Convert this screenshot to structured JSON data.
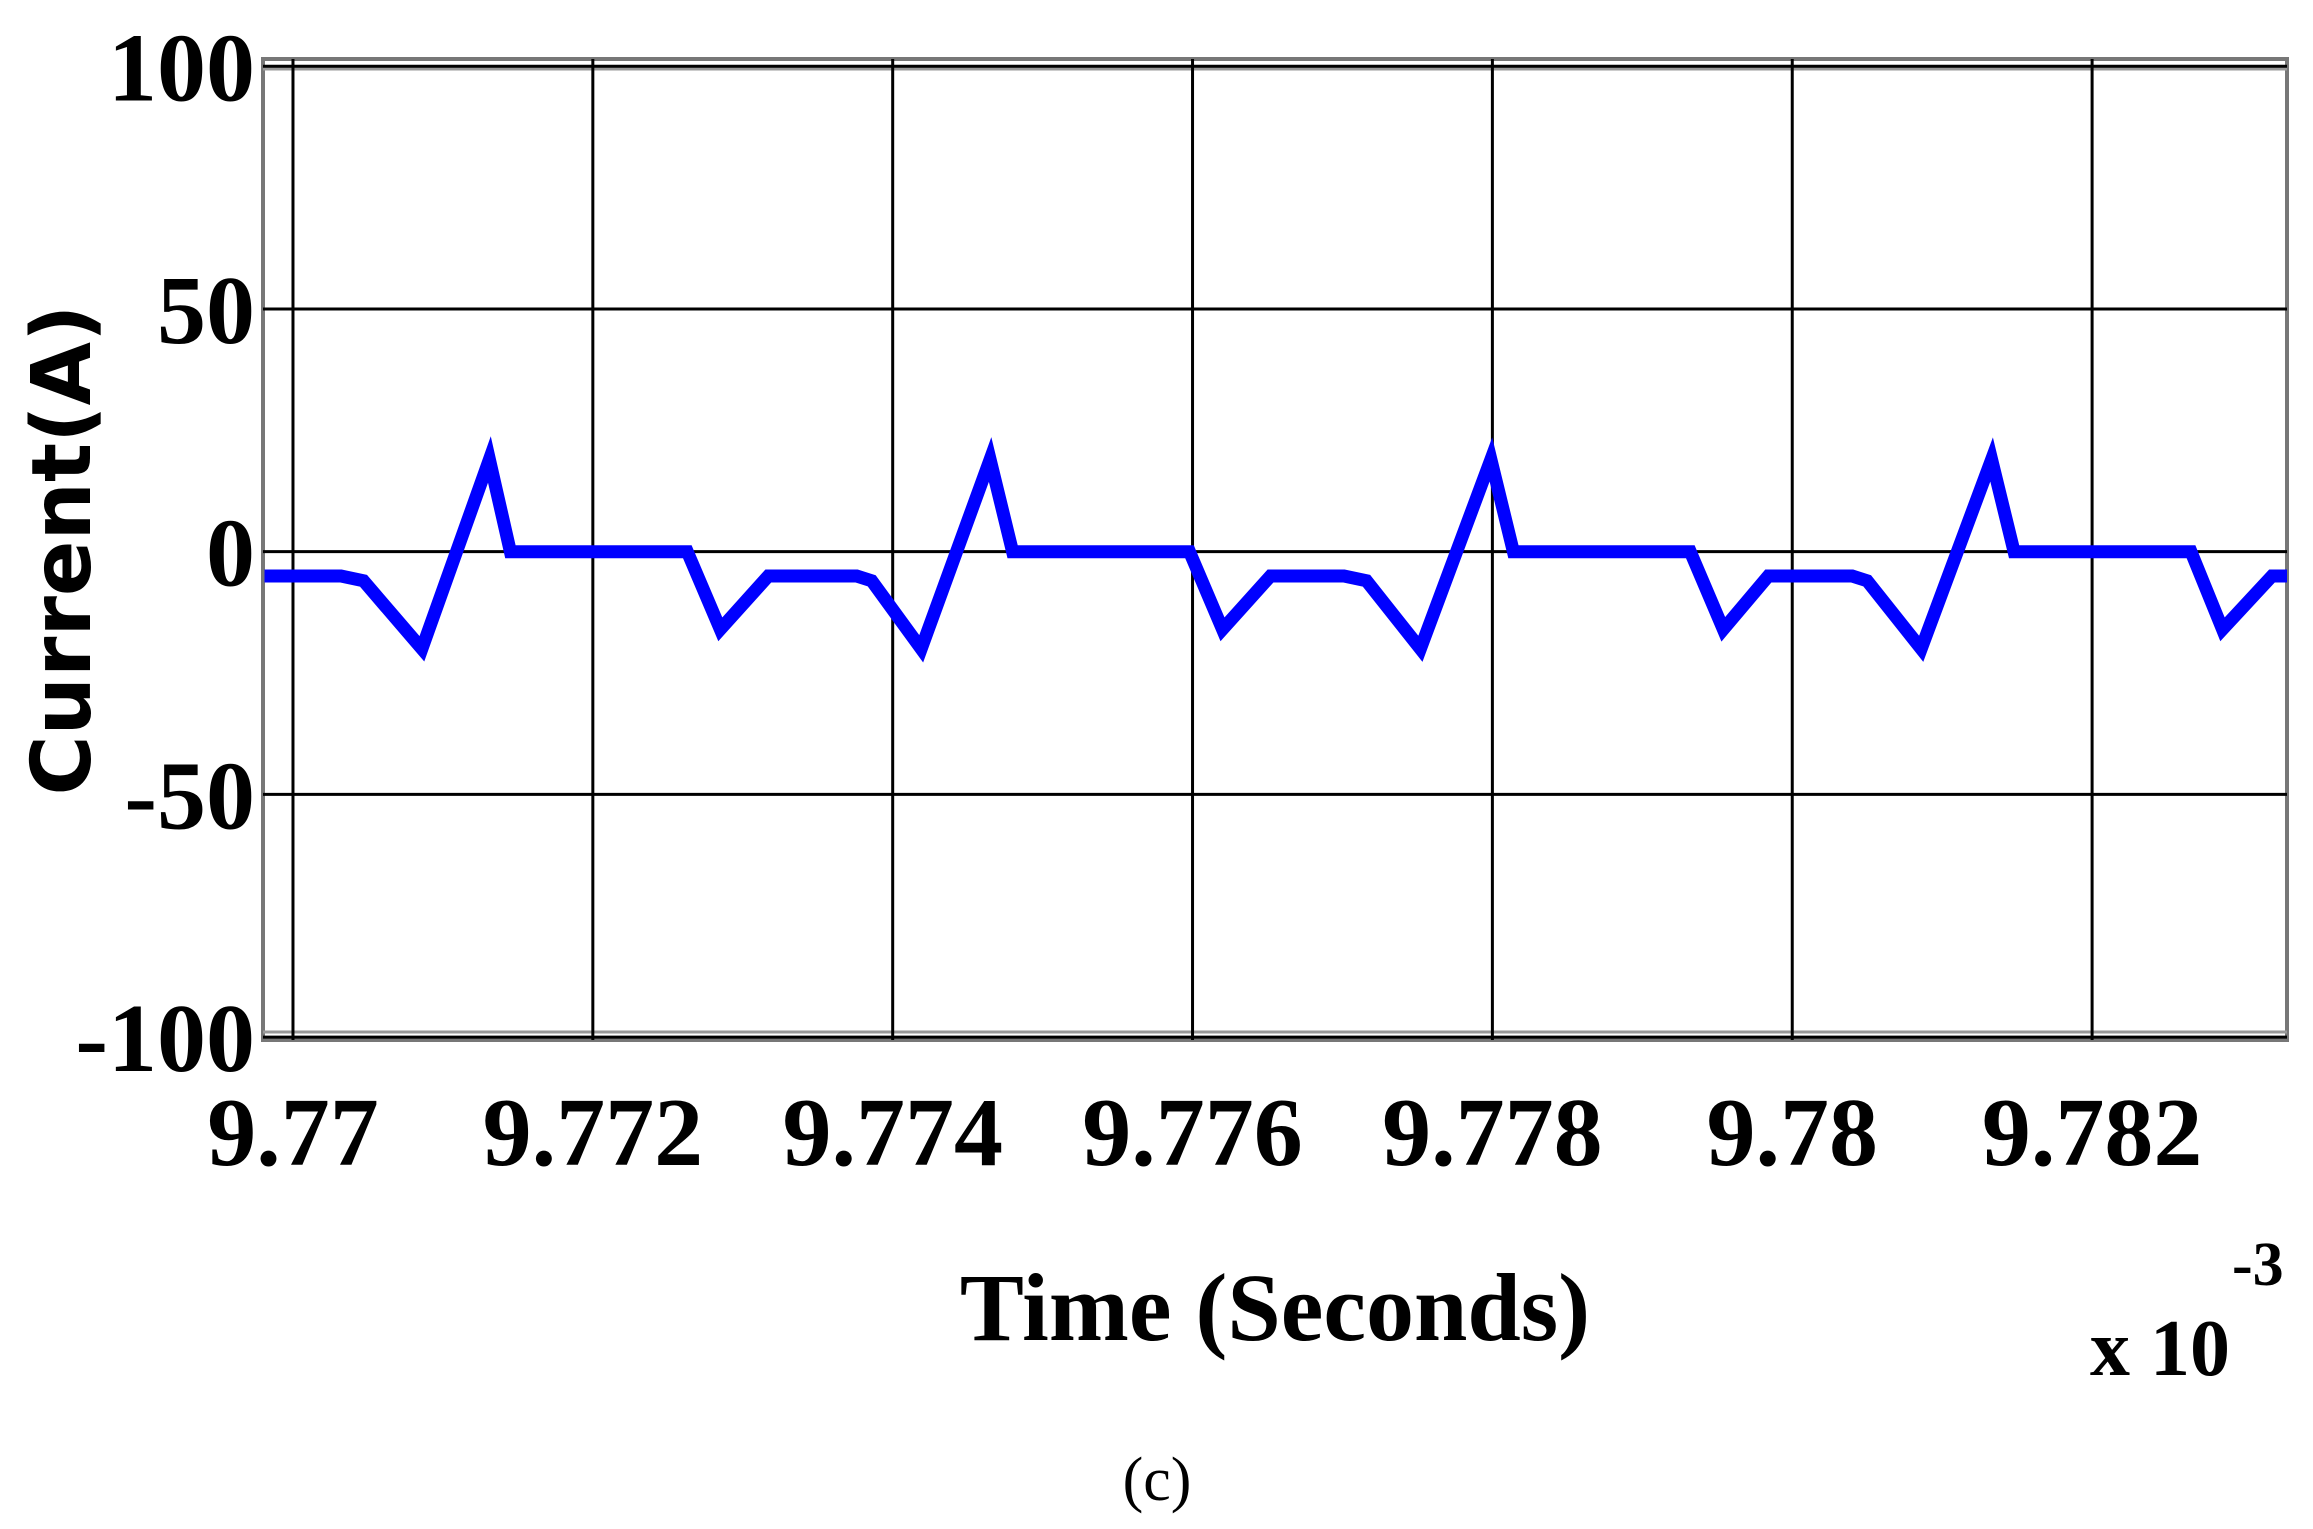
{
  "chart_data": {
    "type": "line",
    "x_label": "Time (Seconds)",
    "y_label": "Current(A)",
    "x_multiplier": "x 10",
    "x_multiplier_exponent": "-3",
    "caption": "(c)",
    "x": [
      9.76981,
      9.77032,
      9.77047,
      9.77086,
      9.77131,
      9.77145,
      9.77263,
      9.77285,
      9.77317,
      9.77376,
      9.77386,
      9.77419,
      9.77465,
      9.7748,
      9.77598,
      9.7762,
      9.77652,
      9.77701,
      9.77716,
      9.77752,
      9.77799,
      9.77814,
      9.77932,
      9.77954,
      9.77984,
      9.7804,
      9.7805,
      9.78086,
      9.78133,
      9.78148,
      9.78266,
      9.78287,
      9.7832,
      9.7833
    ],
    "series": [
      {
        "color": "#0000ff",
        "values": [
          -5,
          -5,
          -6,
          -20,
          19,
          0,
          0,
          -16,
          -5,
          -5,
          -6,
          -20,
          19,
          0,
          0,
          -16,
          -5,
          -5,
          -6,
          -20,
          19,
          0,
          0,
          -16,
          -5,
          -5,
          -6,
          -20,
          19,
          0,
          0,
          -16,
          -5,
          -5
        ]
      }
    ],
    "xlim": [
      9.7698,
      9.7833
    ],
    "ylim": [
      -100.6,
      101.5
    ],
    "xticks": [
      9.77,
      9.772,
      9.774,
      9.776,
      9.778,
      9.78,
      9.782
    ],
    "yticks": [
      100,
      50,
      0,
      -50,
      -100
    ],
    "grid": true
  }
}
